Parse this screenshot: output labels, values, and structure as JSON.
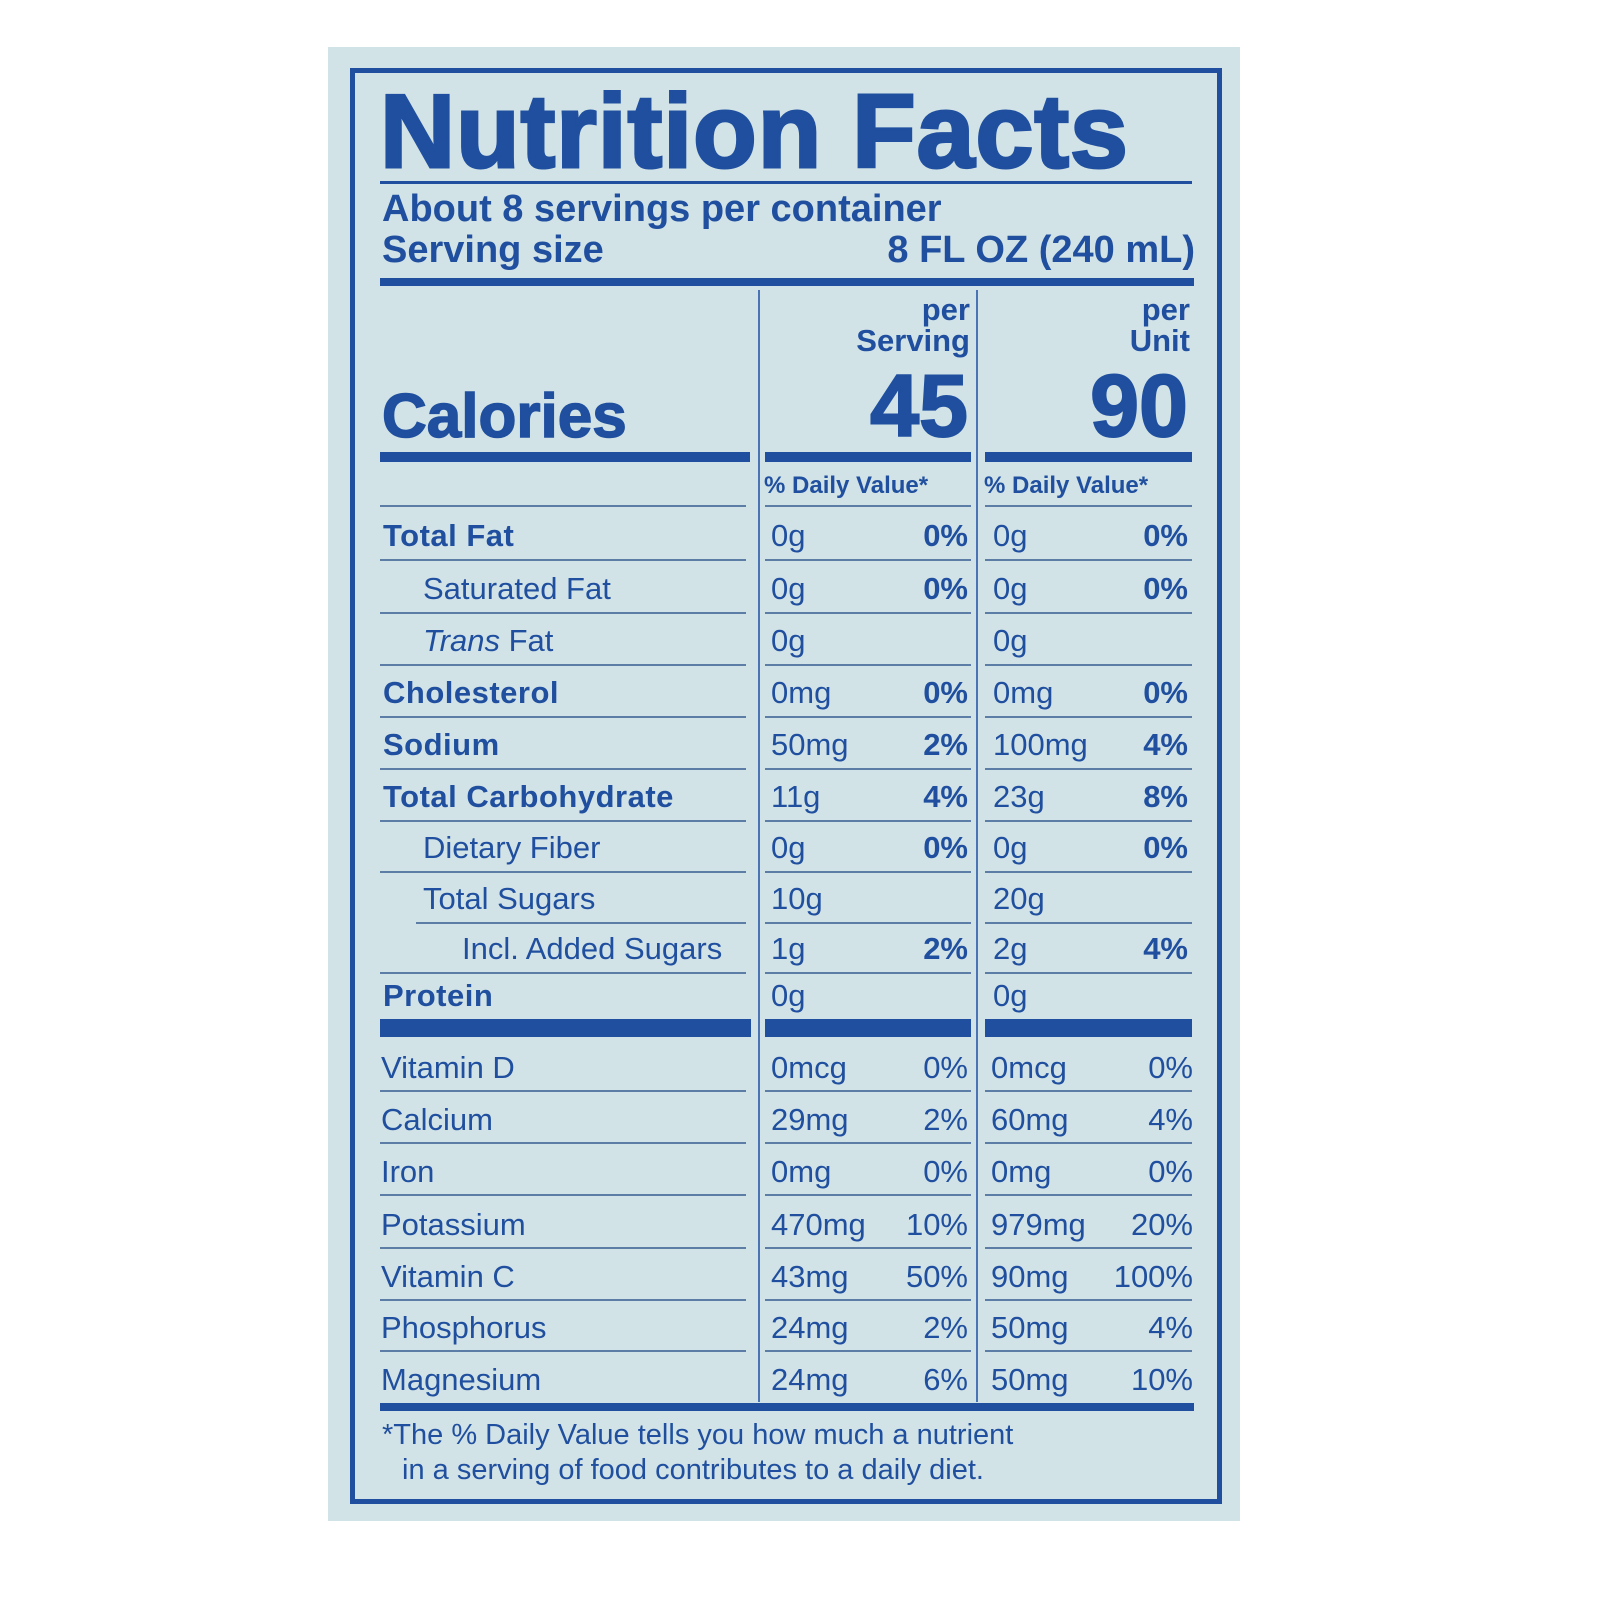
{
  "header": {
    "title": "Nutrition Facts",
    "servings_per_container": "About 8 servings per container",
    "serving_size_label": "Serving size",
    "serving_size_value": "8 FL OZ (240 mL)"
  },
  "columns": {
    "per_serving_line1": "per",
    "per_serving_line2": "Serving",
    "per_unit_line1": "per",
    "per_unit_line2": "Unit",
    "daily_value_header": "% Daily Value*"
  },
  "calories": {
    "label": "Calories",
    "per_serving": "45",
    "per_unit": "90"
  },
  "nutrients": [
    {
      "name": "Total Fat",
      "style": "bold",
      "indent": 0,
      "serving_amount": "0g",
      "serving_dv": "0%",
      "unit_amount": "0g",
      "unit_dv": "0%"
    },
    {
      "name": "Saturated Fat",
      "style": "normal",
      "indent": 1,
      "serving_amount": "0g",
      "serving_dv": "0%",
      "unit_amount": "0g",
      "unit_dv": "0%"
    },
    {
      "name_italic": "Trans",
      "name": " Fat",
      "style": "normal",
      "indent": 1,
      "serving_amount": "0g",
      "serving_dv": "",
      "unit_amount": "0g",
      "unit_dv": ""
    },
    {
      "name": "Cholesterol",
      "style": "bold",
      "indent": 0,
      "serving_amount": "0mg",
      "serving_dv": "0%",
      "unit_amount": "0mg",
      "unit_dv": "0%"
    },
    {
      "name": "Sodium",
      "style": "bold",
      "indent": 0,
      "serving_amount": "50mg",
      "serving_dv": "2%",
      "unit_amount": "100mg",
      "unit_dv": "4%"
    },
    {
      "name": "Total Carbohydrate",
      "style": "bold",
      "indent": 0,
      "serving_amount": "11g",
      "serving_dv": "4%",
      "unit_amount": "23g",
      "unit_dv": "8%"
    },
    {
      "name": "Dietary Fiber",
      "style": "normal",
      "indent": 1,
      "serving_amount": "0g",
      "serving_dv": "0%",
      "unit_amount": "0g",
      "unit_dv": "0%"
    },
    {
      "name": "Total Sugars",
      "style": "normal",
      "indent": 1,
      "serving_amount": "10g",
      "serving_dv": "",
      "unit_amount": "20g",
      "unit_dv": ""
    },
    {
      "name": "Incl. Added Sugars",
      "style": "normal",
      "indent": 2,
      "serving_amount": "1g",
      "serving_dv": "2%",
      "unit_amount": "2g",
      "unit_dv": "4%"
    },
    {
      "name": "Protein",
      "style": "bold",
      "indent": 0,
      "serving_amount": "0g",
      "serving_dv": "",
      "unit_amount": "0g",
      "unit_dv": ""
    }
  ],
  "micronutrients": [
    {
      "name": "Vitamin D",
      "serving_amount": "0mcg",
      "serving_dv": "0%",
      "unit_amount": "0mcg",
      "unit_dv": "0%"
    },
    {
      "name": "Calcium",
      "serving_amount": "29mg",
      "serving_dv": "2%",
      "unit_amount": "60mg",
      "unit_dv": "4%"
    },
    {
      "name": "Iron",
      "serving_amount": "0mg",
      "serving_dv": "0%",
      "unit_amount": "0mg",
      "unit_dv": "0%"
    },
    {
      "name": "Potassium",
      "serving_amount": "470mg",
      "serving_dv": "10%",
      "unit_amount": "979mg",
      "unit_dv": "20%"
    },
    {
      "name": "Vitamin C",
      "serving_amount": "43mg",
      "serving_dv": "50%",
      "unit_amount": "90mg",
      "unit_dv": "100%"
    },
    {
      "name": "Phosphorus",
      "serving_amount": "24mg",
      "serving_dv": "2%",
      "unit_amount": "50mg",
      "unit_dv": "4%"
    },
    {
      "name": "Magnesium",
      "serving_amount": "24mg",
      "serving_dv": "6%",
      "unit_amount": "50mg",
      "unit_dv": "10%"
    }
  ],
  "footnote": {
    "line1": "*The % Daily Value tells you how much a nutrient",
    "line2": "in a serving of food contributes to a daily diet."
  },
  "colors": {
    "ink": "#1f4f9e",
    "background": "#d2e3e7"
  }
}
